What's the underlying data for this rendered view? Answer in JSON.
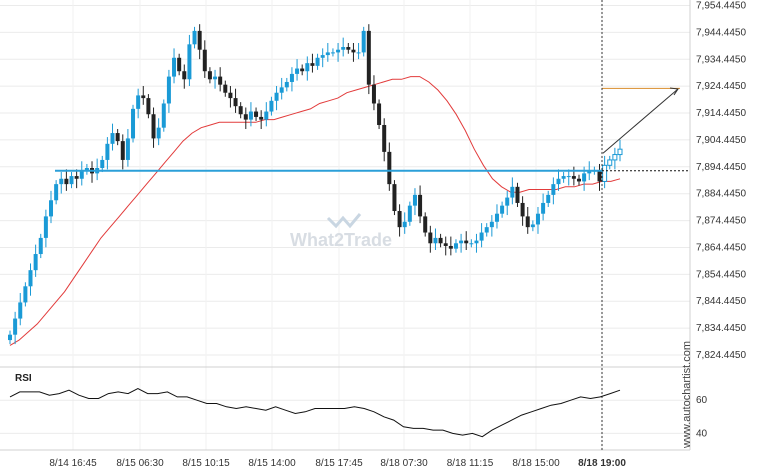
{
  "watermark": "What2Trade",
  "side_credit": "www.autochartist.com",
  "chart_data": [
    {
      "type": "candlestick",
      "y_ticks": [
        "7,954.4450",
        "7,944.4450",
        "7,934.4450",
        "7,924.4450",
        "7,914.4450",
        "7,904.4450",
        "7,894.4450",
        "7,884.4450",
        "7,874.4450",
        "7,864.4450",
        "7,854.4450",
        "7,844.4450",
        "7,834.4450",
        "7,824.4450"
      ],
      "ylim": [
        7824.445,
        7954.445
      ],
      "x_ticks": [
        "8/14 16:45",
        "8/15 06:30",
        "8/15 10:15",
        "8/15 14:00",
        "8/15 17:45",
        "8/18 07:30",
        "8/18 11:15",
        "8/18 15:00",
        "8/18 19:00"
      ],
      "support_level": 7893.0,
      "projection_level": 7923.6,
      "projection_arrow_end": 7923.4,
      "close_approx": [
        7832,
        7838,
        7844,
        7850,
        7856,
        7862,
        7868,
        7876,
        7882,
        7888,
        7890,
        7888,
        7891,
        7890,
        7893,
        7894,
        7892,
        7894,
        7897,
        7903,
        7907,
        7904,
        7897,
        7905,
        7916,
        7921,
        7920,
        7914,
        7905,
        7909,
        7918,
        7928,
        7935,
        7930,
        7927,
        7940,
        7945,
        7938,
        7930,
        7927,
        7928,
        7925,
        7922,
        7920,
        7917,
        7914,
        7912,
        7915,
        7913,
        7912,
        7915,
        7919,
        7922,
        7924,
        7926,
        7929,
        7931,
        7930,
        7933,
        7932,
        7935,
        7936,
        7937,
        7937,
        7938,
        7939,
        7938,
        7937,
        7937,
        7945,
        7925,
        7918,
        7910,
        7900,
        7888,
        7878,
        7872,
        7874,
        7880,
        7884,
        7876,
        7870,
        7866,
        7868,
        7866,
        7865,
        7864,
        7866,
        7867,
        7866,
        7866,
        7867,
        7870,
        7872,
        7874,
        7877,
        7880,
        7883,
        7887,
        7881,
        7876,
        7872,
        7873,
        7877,
        7881,
        7884,
        7888,
        7890,
        7891,
        7891,
        7890,
        7889,
        7892,
        7893,
        7893,
        7889,
        7895,
        7897,
        7899,
        7901
      ],
      "ma_approx": [
        7828,
        7830,
        7833,
        7836,
        7840,
        7844,
        7848,
        7853,
        7858,
        7863,
        7868,
        7872,
        7876,
        7880,
        7884,
        7888,
        7892,
        7896,
        7900,
        7904,
        7907,
        7909,
        7910,
        7911,
        7911,
        7911,
        7911,
        7911,
        7912,
        7912,
        7913,
        7914,
        7915,
        7916,
        7918,
        7919,
        7920,
        7922,
        7923,
        7924,
        7925,
        7926,
        7927,
        7927,
        7928,
        7928,
        7926,
        7923,
        7919,
        7914,
        7908,
        7901,
        7895,
        7890,
        7887,
        7885,
        7885,
        7886,
        7886,
        7886,
        7886,
        7887,
        7887,
        7888,
        7888,
        7889,
        7889,
        7890
      ],
      "rsi": {
        "label": "RSI",
        "y_ticks": [
          "60",
          "40"
        ],
        "ylim": [
          30,
          80
        ],
        "values": [
          62,
          65,
          65,
          65,
          63,
          64,
          66,
          63,
          61,
          61,
          64,
          65,
          64,
          67,
          64,
          64,
          65,
          62,
          62,
          60,
          58,
          58,
          56,
          55,
          56,
          55,
          54,
          56,
          54,
          52,
          53,
          55,
          55,
          55,
          55,
          56,
          55,
          53,
          50,
          48,
          44,
          43,
          43,
          42,
          42,
          40,
          39,
          40,
          38,
          42,
          45,
          48,
          51,
          53,
          55,
          57,
          58,
          60,
          62,
          61,
          62,
          64,
          66
        ]
      }
    }
  ]
}
